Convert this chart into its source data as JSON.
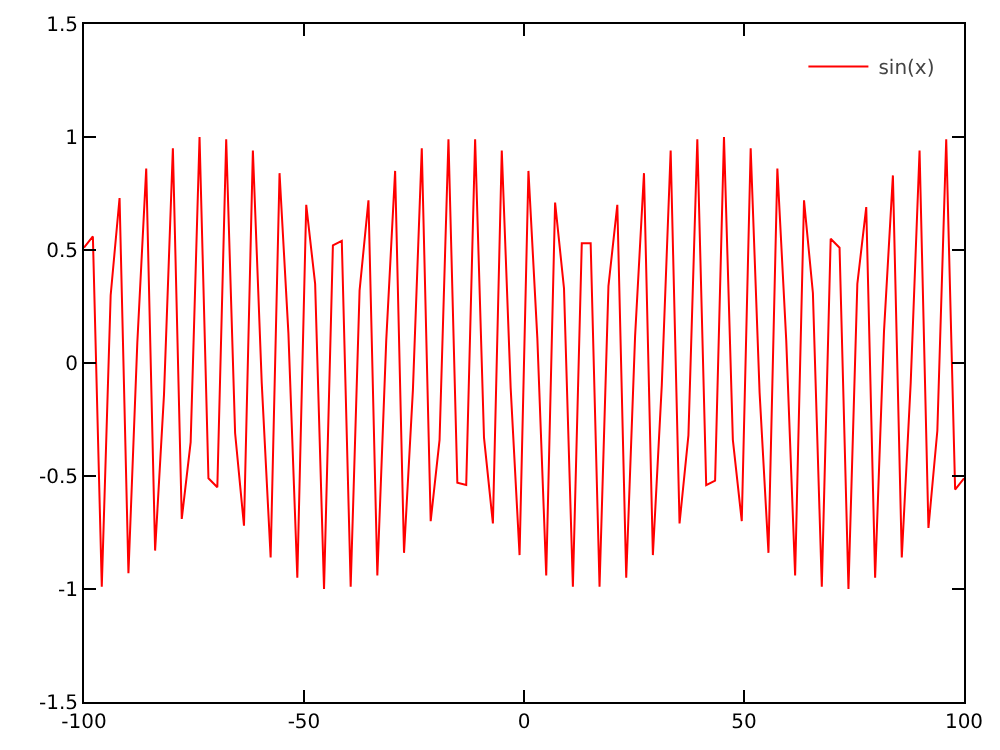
{
  "chart_data": {
    "type": "line",
    "xlim": [
      -100,
      100
    ],
    "ylim": [
      -1.5,
      1.5
    ],
    "xticks": [
      -100,
      -50,
      0,
      50,
      100
    ],
    "yticks": [
      -1.5,
      -1,
      -0.5,
      0,
      0.5,
      1,
      1.5
    ],
    "grid": false,
    "legend": "top right",
    "marker": "none",
    "line_style": "solid",
    "x": [
      -100,
      -97.98,
      -95.96,
      -93.94,
      -91.92,
      -89.9,
      -87.88,
      -85.86,
      -83.84,
      -81.82,
      -79.8,
      -77.78,
      -75.76,
      -73.74,
      -71.72,
      -69.7,
      -67.68,
      -65.66,
      -63.64,
      -61.62,
      -59.6,
      -57.58,
      -55.56,
      -53.54,
      -51.52,
      -49.49,
      -47.47,
      -45.45,
      -43.43,
      -41.41,
      -39.39,
      -37.37,
      -35.35,
      -33.33,
      -31.31,
      -29.29,
      -27.27,
      -25.25,
      -23.23,
      -21.21,
      -19.19,
      -17.17,
      -15.15,
      -13.13,
      -11.11,
      -9.09,
      -7.07,
      -5.05,
      -3.03,
      -1.01,
      1.01,
      3.03,
      5.05,
      7.07,
      9.09,
      11.11,
      13.13,
      15.15,
      17.17,
      19.19,
      21.21,
      23.23,
      25.25,
      27.27,
      29.29,
      31.31,
      33.33,
      35.35,
      37.37,
      39.39,
      41.41,
      43.43,
      45.45,
      47.47,
      49.49,
      51.52,
      53.54,
      55.56,
      57.58,
      59.6,
      61.62,
      63.64,
      65.66,
      67.68,
      69.7,
      71.72,
      73.74,
      75.76,
      77.78,
      79.8,
      81.82,
      83.84,
      85.86,
      87.88,
      89.9,
      91.92,
      93.94,
      95.96,
      97.98,
      100
    ],
    "series": [
      {
        "name": "sin(x)",
        "color": "#ff0000",
        "values": [
          0.51,
          0.56,
          -0.99,
          0.3,
          0.73,
          -0.93,
          0.09,
          0.86,
          -0.83,
          -0.14,
          0.95,
          -0.69,
          -0.35,
          1.0,
          -0.51,
          -0.55,
          0.99,
          -0.31,
          -0.72,
          0.94,
          -0.09,
          -0.86,
          0.84,
          0.13,
          -0.95,
          0.7,
          0.35,
          -1.0,
          0.52,
          0.54,
          -0.99,
          0.32,
          0.72,
          -0.94,
          0.1,
          0.85,
          -0.84,
          -0.12,
          0.95,
          -0.7,
          -0.34,
          0.99,
          -0.53,
          -0.54,
          0.99,
          -0.33,
          -0.71,
          0.94,
          -0.11,
          -0.85,
          0.85,
          0.11,
          -0.94,
          0.71,
          0.33,
          -0.99,
          0.53,
          0.53,
          -0.99,
          0.34,
          0.7,
          -0.95,
          0.12,
          0.84,
          -0.85,
          -0.1,
          0.94,
          -0.71,
          -0.32,
          0.99,
          -0.54,
          -0.52,
          1.0,
          -0.34,
          -0.7,
          0.95,
          -0.13,
          -0.84,
          0.86,
          0.1,
          -0.94,
          0.72,
          0.31,
          -0.99,
          0.55,
          0.51,
          -1.0,
          0.35,
          0.69,
          -0.95,
          0.14,
          0.83,
          -0.86,
          -0.09,
          0.94,
          -0.73,
          -0.3,
          0.99,
          -0.56,
          -0.51
        ]
      }
    ]
  }
}
